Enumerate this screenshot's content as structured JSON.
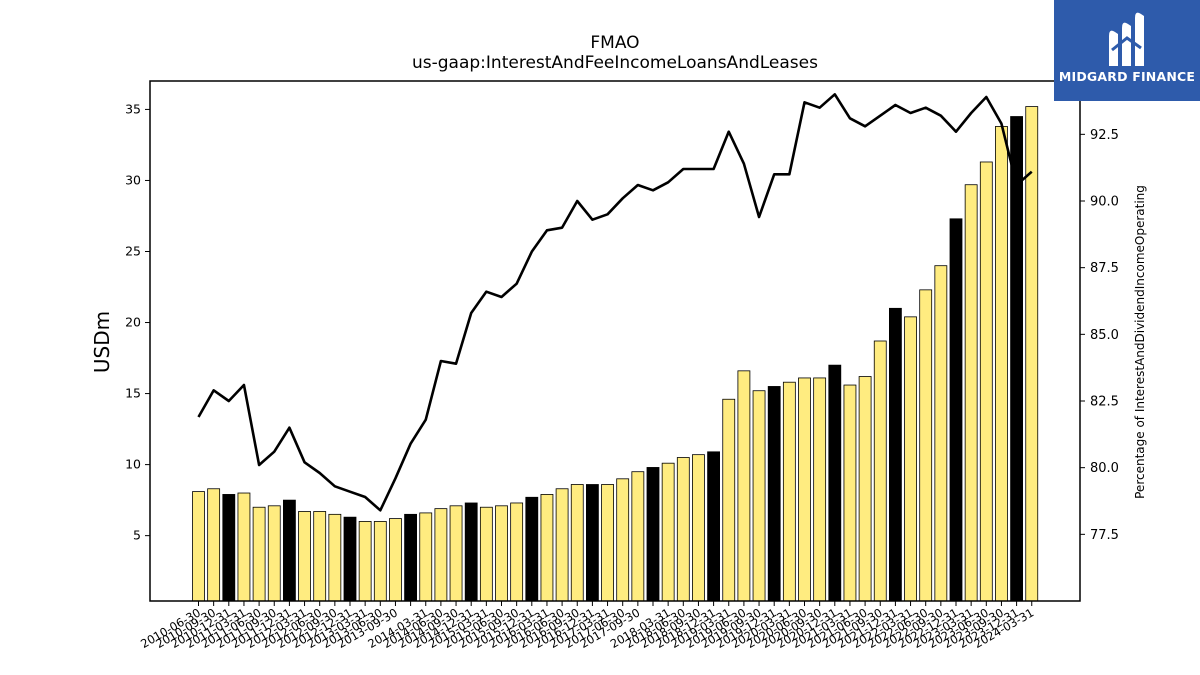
{
  "brand": {
    "name": "MIDGARD FINANCE",
    "bg_color": "#2e5bab",
    "mark_icon": "midgard-m-mark"
  },
  "chart_data": {
    "type": "bar",
    "title": "FMAO",
    "subtitle": "us-gaap:InterestAndFeeIncomeLoansAndLeases",
    "ylabel": "USDm",
    "y2label": "Percentage of InterestAndDividendIncomeOperating",
    "ylim": [
      0.4,
      37.0
    ],
    "y2lim": [
      75.0,
      94.5
    ],
    "yticks": [
      5,
      10,
      15,
      20,
      25,
      30,
      35
    ],
    "y2ticks": [
      77.5,
      80.0,
      82.5,
      85.0,
      87.5,
      90.0,
      92.5
    ],
    "y2tick_labels": [
      "77.5",
      "80.0",
      "82.5",
      "85.0",
      "87.5",
      "90.0",
      "92.5"
    ],
    "colors": {
      "quarter": "#ffec80",
      "fiscal_year_end": "#000000",
      "line": "#000000"
    },
    "categories": [
      "2010-06-30",
      "2010-09-30",
      "2010-12-31",
      "2011-03-31",
      "2011-06-30",
      "2011-09-30",
      "2011-12-31",
      "2012-03-31",
      "2012-06-30",
      "2012-09-30",
      "2012-12-31",
      "2013-03-31",
      "2013-06-30",
      "2013-09-30",
      "2013-12-31",
      "2014-03-31",
      "2014-06-30",
      "2014-09-30",
      "2014-12-31",
      "2015-03-31",
      "2015-06-30",
      "2015-09-30",
      "2015-12-31",
      "2016-03-31",
      "2016-06-30",
      "2016-09-30",
      "2016-12-31",
      "2017-03-31",
      "2017-06-30",
      "2017-09-30",
      "2017-12-31",
      "2018-03-31",
      "2018-06-30",
      "2018-09-30",
      "2018-12-31",
      "2019-03-31",
      "2019-06-30",
      "2019-09-30",
      "2019-12-31",
      "2020-03-31",
      "2020-06-30",
      "2020-09-30",
      "2020-12-31",
      "2021-03-31",
      "2021-06-30",
      "2021-09-30",
      "2021-12-31",
      "2022-03-31",
      "2022-06-30",
      "2022-09-30",
      "2022-12-31",
      "2023-03-31",
      "2023-06-30",
      "2023-09-30",
      "2023-12-31",
      "2024-03-31"
    ],
    "visible_tick_labels": [
      "2010-06-30",
      "2010-09-30",
      "2010-12-31",
      "2011-03-31",
      "2011-06-30",
      "2011-09-30",
      "2011-12-31",
      "2012-03-31",
      "2012-06-30",
      "2012-09-30",
      "2012-12-31",
      "2013-03-31",
      "2013-06-30",
      "2013-09-30",
      "2014-03-31",
      "2014-06-30",
      "2014-09-30",
      "2014-12-31",
      "2015-03-31",
      "2015-06-30",
      "2015-09-30",
      "2015-12-31",
      "2016-03-31",
      "2016-06-30",
      "2016-09-30",
      "2016-12-31",
      "2017-03-31",
      "2017-06-30",
      "2017-09-30",
      "2018-03-31",
      "2018-06-30",
      "2018-09-30",
      "2018-12-31",
      "2019-03-31",
      "2019-06-30",
      "2019-09-30",
      "2019-12-31",
      "2020-03-31",
      "2020-06-30",
      "2020-09-30",
      "2020-12-31",
      "2021-03-31",
      "2021-06-30",
      "2021-09-30",
      "2021-12-31",
      "2022-03-31",
      "2022-06-30",
      "2022-09-30",
      "2022-12-31",
      "2023-03-31",
      "2023-06-30",
      "2023-09-30",
      "2023-12-31",
      "2024-03-31"
    ],
    "series": [
      {
        "type": "bar",
        "values": [
          8.1,
          8.3,
          7.9,
          8.0,
          7.0,
          7.1,
          7.5,
          6.7,
          6.7,
          6.5,
          6.3,
          6.0,
          6.0,
          6.2,
          6.5,
          6.6,
          6.9,
          7.1,
          7.3,
          7.0,
          7.1,
          7.3,
          7.7,
          7.9,
          8.3,
          8.6,
          8.6,
          8.6,
          9.0,
          9.5,
          9.8,
          10.1,
          10.5,
          10.7,
          10.9,
          14.6,
          16.6,
          15.2,
          15.5,
          15.8,
          16.1,
          16.1,
          17.0,
          15.6,
          16.2,
          18.7,
          21.0,
          20.4,
          22.3,
          24.0,
          27.3,
          29.7,
          31.3,
          33.8,
          34.5,
          35.2
        ],
        "fiscal_year_end": [
          false,
          false,
          true,
          false,
          false,
          false,
          true,
          false,
          false,
          false,
          true,
          false,
          false,
          false,
          true,
          false,
          false,
          false,
          true,
          false,
          false,
          false,
          true,
          false,
          false,
          false,
          true,
          false,
          false,
          false,
          true,
          false,
          false,
          false,
          true,
          false,
          false,
          false,
          true,
          false,
          false,
          false,
          true,
          false,
          false,
          false,
          true,
          false,
          false,
          false,
          true,
          false,
          false,
          false,
          true,
          false
        ]
      },
      {
        "type": "line",
        "axis": "secondary",
        "values": [
          81.9,
          82.9,
          82.5,
          83.1,
          80.1,
          80.6,
          81.5,
          80.2,
          79.8,
          79.3,
          79.1,
          78.9,
          78.4,
          79.6,
          80.9,
          81.8,
          84.0,
          83.9,
          85.8,
          86.6,
          86.4,
          86.9,
          88.1,
          88.9,
          89.0,
          90.0,
          89.3,
          89.5,
          90.1,
          90.6,
          90.4,
          90.7,
          91.2,
          91.2,
          91.2,
          92.6,
          91.4,
          89.4,
          91.0,
          91.0,
          93.7,
          93.5,
          94.0,
          93.1,
          92.8,
          93.2,
          93.6,
          93.3,
          93.5,
          93.2,
          92.6,
          93.3,
          93.9,
          92.9,
          90.6,
          91.1
        ]
      }
    ]
  }
}
